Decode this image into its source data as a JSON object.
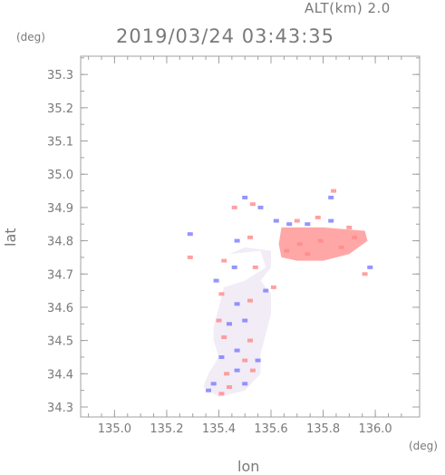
{
  "header": {
    "alt_label": "ALT(km) 2.0",
    "timestamp": "2019/03/24 03:43:35"
  },
  "chart_data": {
    "type": "heatmap",
    "xlabel": "lon",
    "ylabel": "lat",
    "x_unit": "(deg)",
    "y_unit": "(deg)",
    "xlim": [
      134.87,
      136.17
    ],
    "ylim": [
      34.27,
      35.355
    ],
    "x_ticks": [
      135.0,
      135.2,
      135.4,
      135.6,
      135.8,
      136.0
    ],
    "x_tick_labels": [
      "135.0",
      "135.2",
      "135.4",
      "135.6",
      "135.8",
      "136.0"
    ],
    "y_ticks": [
      34.3,
      34.4,
      34.5,
      34.6,
      34.7,
      34.8,
      34.9,
      35.0,
      35.1,
      35.2,
      35.3
    ],
    "y_tick_labels": [
      "34.3",
      "34.4",
      "34.5",
      "34.6",
      "34.7",
      "34.8",
      "34.9",
      "35.0",
      "35.1",
      "35.2",
      "35.3"
    ],
    "colors": {
      "positive": "#ff8a8a",
      "negative": "#7a7aff",
      "near_zero": "#f1ecf6",
      "frame": "#a0a0a0"
    },
    "regions": [
      {
        "kind": "near_zero",
        "lon": [
          [
            135.44,
            34.76
          ],
          [
            135.56,
            34.77
          ],
          [
            135.58,
            34.72
          ],
          [
            135.5,
            34.68
          ],
          [
            135.42,
            34.66
          ],
          [
            135.4,
            34.6
          ],
          [
            135.38,
            34.54
          ],
          [
            135.38,
            34.5
          ],
          [
            135.4,
            34.45
          ],
          [
            135.36,
            34.4
          ],
          [
            135.34,
            34.36
          ],
          [
            135.4,
            34.33
          ],
          [
            135.5,
            34.35
          ],
          [
            135.56,
            34.4
          ],
          [
            135.56,
            34.46
          ],
          [
            135.58,
            34.52
          ],
          [
            135.6,
            34.58
          ],
          [
            135.6,
            34.64
          ],
          [
            135.56,
            34.68
          ],
          [
            135.6,
            34.72
          ],
          [
            135.6,
            34.77
          ],
          [
            135.5,
            34.78
          ]
        ]
      },
      {
        "kind": "positive",
        "lon": [
          [
            135.64,
            34.84
          ],
          [
            135.8,
            34.84
          ],
          [
            135.96,
            34.83
          ],
          [
            135.97,
            34.8
          ],
          [
            135.9,
            34.76
          ],
          [
            135.8,
            34.74
          ],
          [
            135.7,
            34.74
          ],
          [
            135.64,
            34.75
          ],
          [
            135.63,
            34.79
          ]
        ]
      }
    ],
    "points": [
      {
        "lon": 135.62,
        "lat": 34.86,
        "v": -1
      },
      {
        "lon": 135.67,
        "lat": 34.85,
        "v": -1
      },
      {
        "lon": 135.7,
        "lat": 34.86,
        "v": 1
      },
      {
        "lon": 135.74,
        "lat": 34.85,
        "v": -1
      },
      {
        "lon": 135.78,
        "lat": 34.87,
        "v": 1
      },
      {
        "lon": 135.83,
        "lat": 34.86,
        "v": -1
      },
      {
        "lon": 135.9,
        "lat": 34.84,
        "v": 1
      },
      {
        "lon": 135.83,
        "lat": 34.93,
        "v": -1
      },
      {
        "lon": 135.84,
        "lat": 34.95,
        "v": 1
      },
      {
        "lon": 135.5,
        "lat": 34.93,
        "v": -1
      },
      {
        "lon": 135.53,
        "lat": 34.91,
        "v": 1
      },
      {
        "lon": 135.46,
        "lat": 34.9,
        "v": 1
      },
      {
        "lon": 135.56,
        "lat": 34.9,
        "v": -1
      },
      {
        "lon": 135.47,
        "lat": 34.8,
        "v": -1
      },
      {
        "lon": 135.52,
        "lat": 34.81,
        "v": 1
      },
      {
        "lon": 135.42,
        "lat": 34.74,
        "v": 1
      },
      {
        "lon": 135.46,
        "lat": 34.72,
        "v": -1
      },
      {
        "lon": 135.54,
        "lat": 34.72,
        "v": 1
      },
      {
        "lon": 135.39,
        "lat": 34.68,
        "v": -1
      },
      {
        "lon": 135.41,
        "lat": 34.64,
        "v": 1
      },
      {
        "lon": 135.47,
        "lat": 34.61,
        "v": -1
      },
      {
        "lon": 135.52,
        "lat": 34.62,
        "v": 1
      },
      {
        "lon": 135.58,
        "lat": 34.65,
        "v": -1
      },
      {
        "lon": 135.61,
        "lat": 34.66,
        "v": 1
      },
      {
        "lon": 135.4,
        "lat": 34.56,
        "v": 1
      },
      {
        "lon": 135.44,
        "lat": 34.55,
        "v": -1
      },
      {
        "lon": 135.5,
        "lat": 34.56,
        "v": -1
      },
      {
        "lon": 135.42,
        "lat": 34.51,
        "v": 1
      },
      {
        "lon": 135.52,
        "lat": 34.5,
        "v": 1
      },
      {
        "lon": 135.47,
        "lat": 34.47,
        "v": -1
      },
      {
        "lon": 135.41,
        "lat": 34.45,
        "v": -1
      },
      {
        "lon": 135.5,
        "lat": 34.44,
        "v": 1
      },
      {
        "lon": 135.55,
        "lat": 34.44,
        "v": -1
      },
      {
        "lon": 135.43,
        "lat": 34.4,
        "v": 1
      },
      {
        "lon": 135.47,
        "lat": 34.41,
        "v": -1
      },
      {
        "lon": 135.53,
        "lat": 34.41,
        "v": 1
      },
      {
        "lon": 135.38,
        "lat": 34.37,
        "v": -1
      },
      {
        "lon": 135.44,
        "lat": 34.36,
        "v": 1
      },
      {
        "lon": 135.5,
        "lat": 34.37,
        "v": -1
      },
      {
        "lon": 135.36,
        "lat": 34.35,
        "v": -1
      },
      {
        "lon": 135.41,
        "lat": 34.34,
        "v": 1
      },
      {
        "lon": 135.29,
        "lat": 34.82,
        "v": -1
      },
      {
        "lon": 135.29,
        "lat": 34.75,
        "v": 1
      },
      {
        "lon": 135.98,
        "lat": 34.72,
        "v": -1
      },
      {
        "lon": 135.96,
        "lat": 34.7,
        "v": 1
      },
      {
        "lon": 135.71,
        "lat": 34.79,
        "v": 1
      },
      {
        "lon": 135.79,
        "lat": 34.8,
        "v": 1
      },
      {
        "lon": 135.87,
        "lat": 34.78,
        "v": 1
      },
      {
        "lon": 135.92,
        "lat": 34.81,
        "v": 1
      },
      {
        "lon": 135.66,
        "lat": 34.77,
        "v": 1
      },
      {
        "lon": 135.74,
        "lat": 34.76,
        "v": 1
      }
    ]
  }
}
